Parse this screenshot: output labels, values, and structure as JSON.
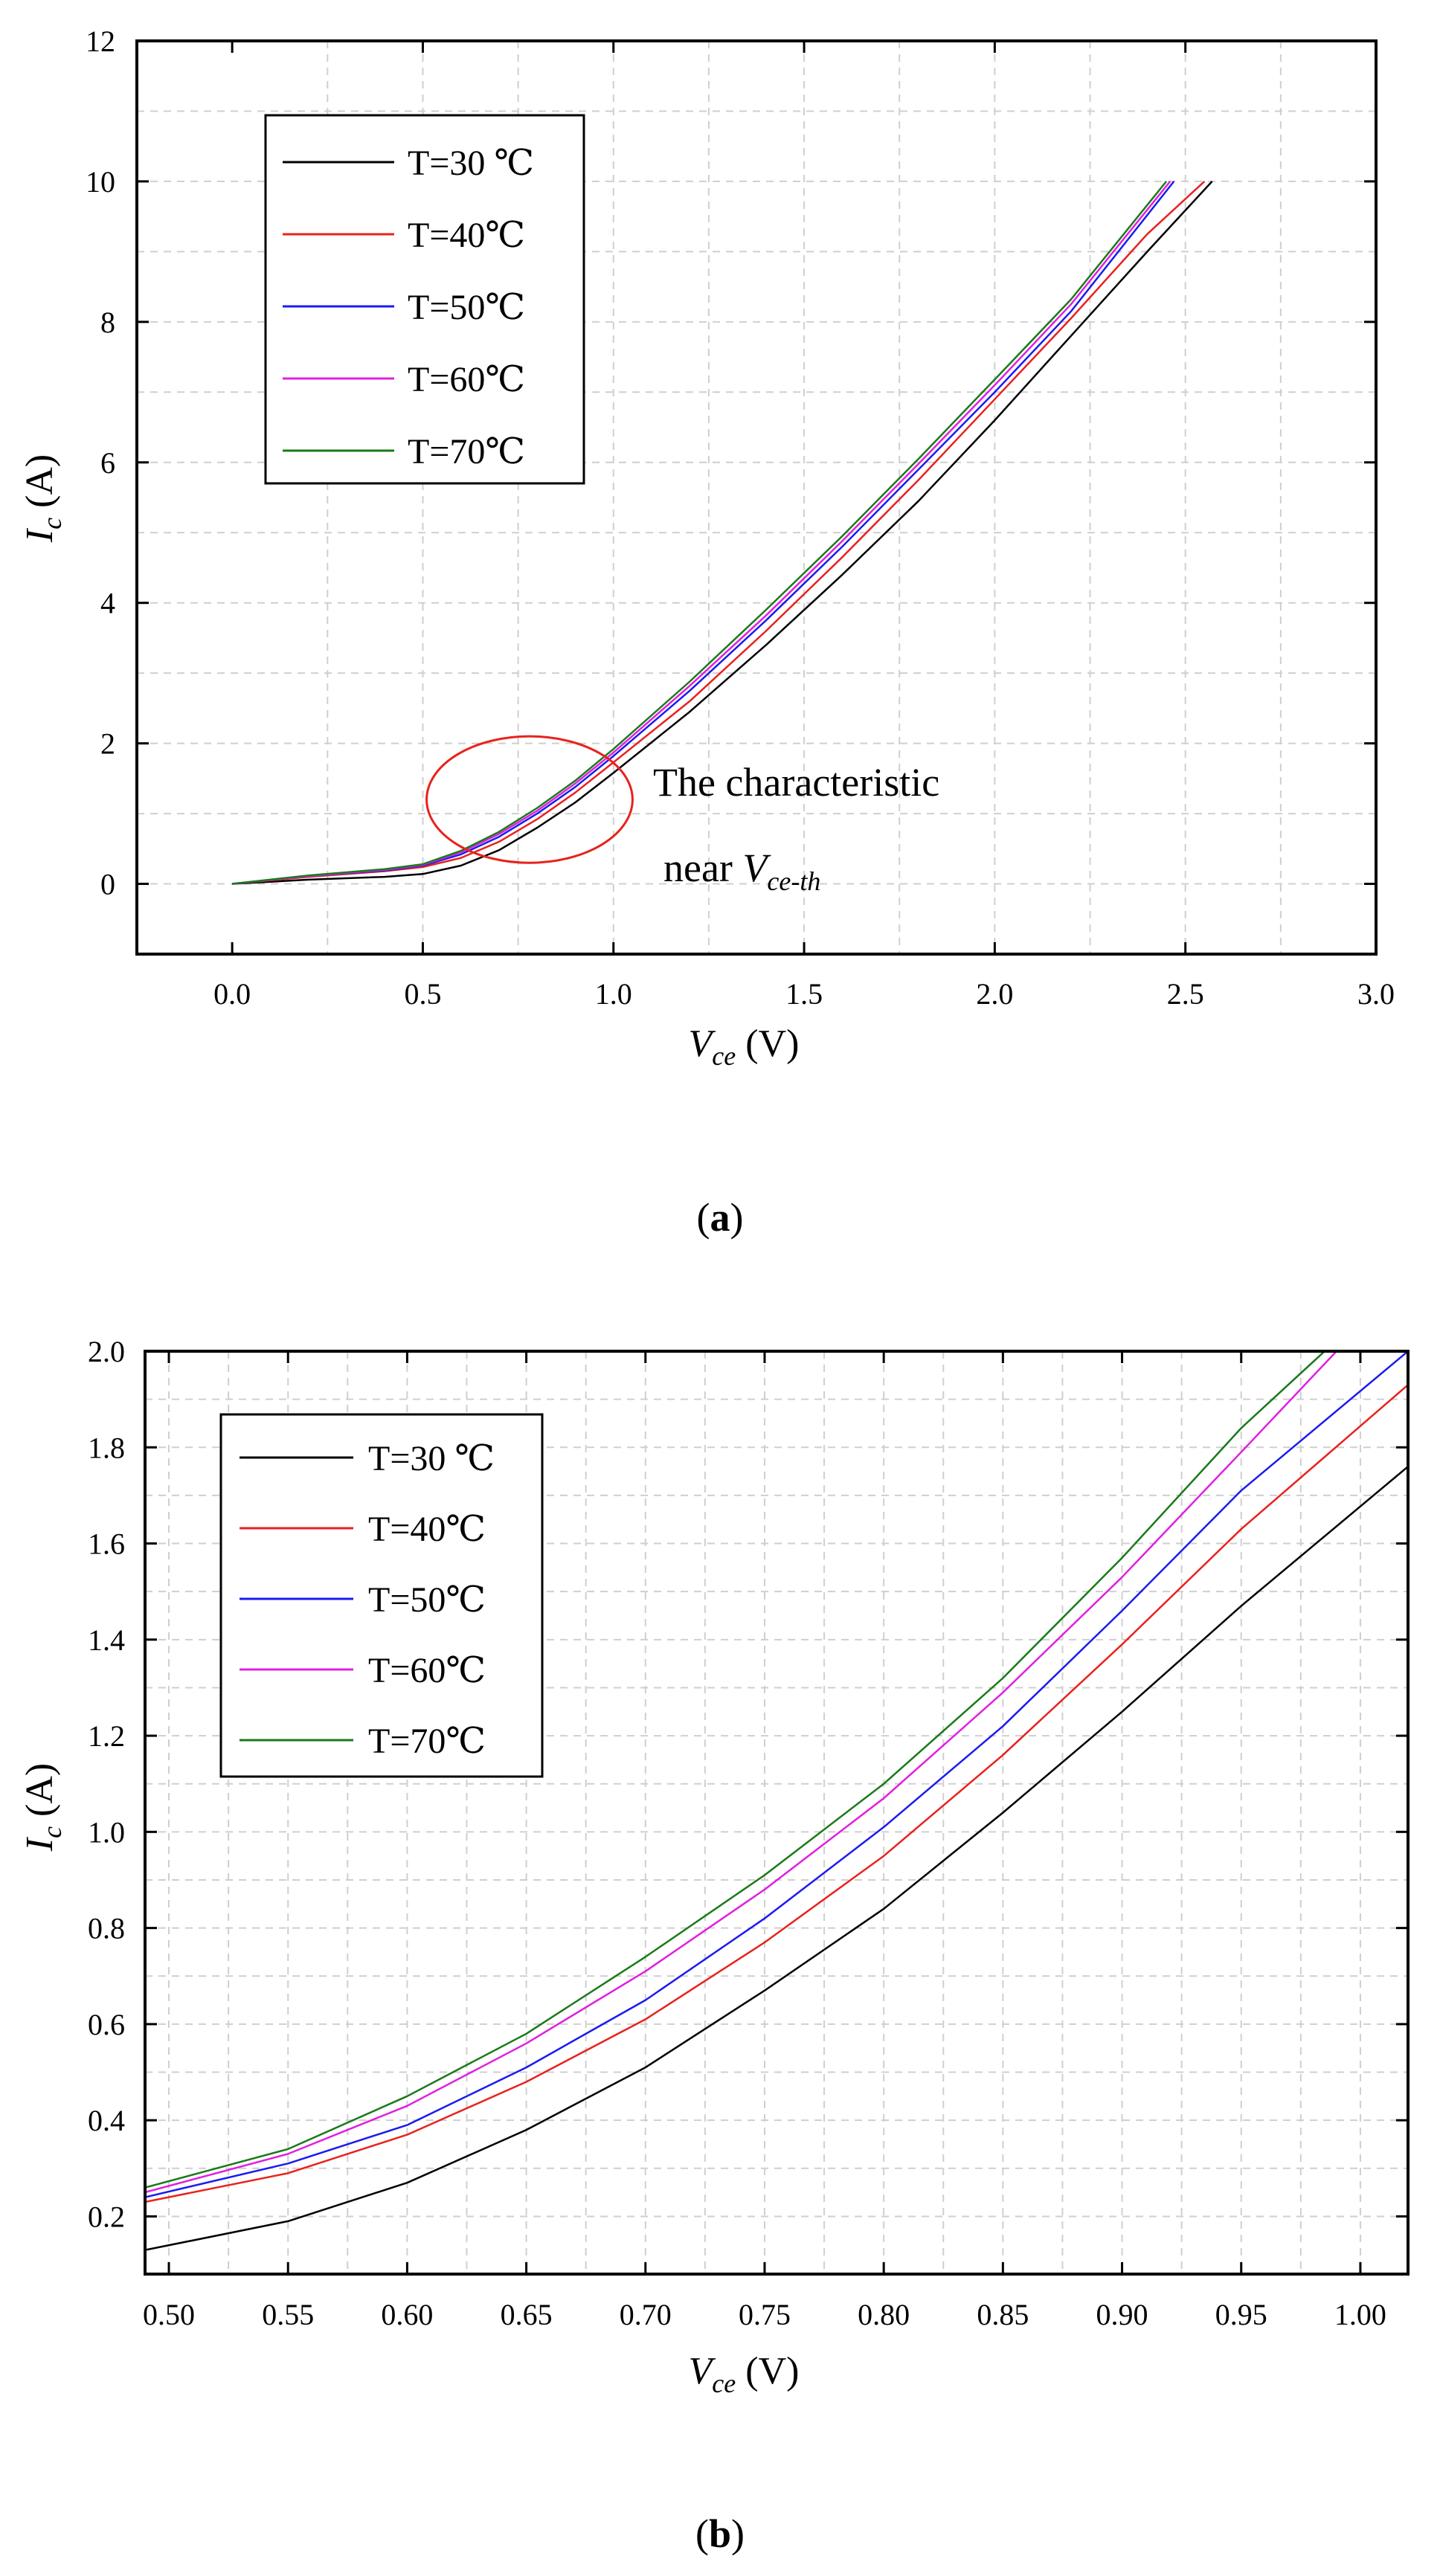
{
  "chart_data": [
    {
      "id": "a",
      "type": "line",
      "caption_letter": "a",
      "xlabel_main": "V",
      "xlabel_sub": "ce",
      "xlabel_unit": "(V)",
      "ylabel_main": "I",
      "ylabel_sub": "c",
      "ylabel_unit": "(A)",
      "xlim": [
        -0.25,
        3.0
      ],
      "ylim": [
        -1,
        12
      ],
      "xticks": [
        0.0,
        0.5,
        1.0,
        1.5,
        2.0,
        2.5,
        3.0
      ],
      "xtick_labels": [
        "0.0",
        "0.5",
        "1.0",
        "1.5",
        "2.0",
        "2.5",
        "3.0"
      ],
      "yticks": [
        0,
        2,
        4,
        6,
        8,
        10,
        12
      ],
      "ytick_labels": [
        "0",
        "2",
        "4",
        "6",
        "8",
        "10",
        "12"
      ],
      "xgrid": [
        0.25,
        0.5,
        0.75,
        1.0,
        1.25,
        1.5,
        1.75,
        2.0,
        2.25,
        2.5,
        2.75
      ],
      "ygrid": [
        0,
        1,
        2,
        3,
        4,
        5,
        6,
        7,
        8,
        9,
        10,
        11
      ],
      "grid": true,
      "legend_position": "top-left",
      "series": [
        {
          "name": "T=30 ℃",
          "color": "#000000",
          "x": [
            0.0,
            0.2,
            0.4,
            0.5,
            0.6,
            0.7,
            0.8,
            0.9,
            1.0,
            1.2,
            1.4,
            1.6,
            1.8,
            2.0,
            2.2,
            2.4,
            2.57
          ],
          "y": [
            0.0,
            0.06,
            0.1,
            0.14,
            0.26,
            0.48,
            0.8,
            1.16,
            1.58,
            2.45,
            3.4,
            4.4,
            5.45,
            6.6,
            7.8,
            9.0,
            10.0
          ]
        },
        {
          "name": "T=40℃",
          "color": "#e8221e",
          "x": [
            0.0,
            0.2,
            0.4,
            0.5,
            0.6,
            0.7,
            0.8,
            0.9,
            1.0,
            1.2,
            1.4,
            1.6,
            1.8,
            2.0,
            2.2,
            2.4,
            2.55
          ],
          "y": [
            0.0,
            0.1,
            0.18,
            0.24,
            0.37,
            0.6,
            0.92,
            1.3,
            1.73,
            2.6,
            3.6,
            4.65,
            5.75,
            6.9,
            8.05,
            9.25,
            10.0
          ]
        },
        {
          "name": "T=50℃",
          "color": "#1b1bf0",
          "x": [
            0.0,
            0.2,
            0.4,
            0.5,
            0.6,
            0.7,
            0.8,
            0.9,
            1.0,
            1.2,
            1.4,
            1.6,
            1.8,
            2.0,
            2.2,
            2.47
          ],
          "y": [
            0.0,
            0.11,
            0.19,
            0.26,
            0.42,
            0.67,
            1.0,
            1.38,
            1.82,
            2.75,
            3.75,
            4.8,
            5.9,
            7.0,
            8.15,
            10.0
          ]
        },
        {
          "name": "T=60℃",
          "color": "#e020e0",
          "x": [
            0.0,
            0.2,
            0.4,
            0.5,
            0.6,
            0.7,
            0.8,
            0.9,
            1.0,
            1.2,
            1.4,
            1.6,
            1.8,
            2.0,
            2.2,
            2.46
          ],
          "y": [
            0.0,
            0.11,
            0.2,
            0.27,
            0.45,
            0.71,
            1.04,
            1.43,
            1.87,
            2.82,
            3.82,
            4.88,
            5.98,
            7.1,
            8.25,
            10.0
          ]
        },
        {
          "name": "T=70℃",
          "color": "#1a7a1a",
          "x": [
            0.0,
            0.2,
            0.4,
            0.5,
            0.6,
            0.7,
            0.8,
            0.9,
            1.0,
            1.2,
            1.4,
            1.6,
            1.8,
            2.0,
            2.2,
            2.45
          ],
          "y": [
            0.0,
            0.12,
            0.21,
            0.28,
            0.47,
            0.74,
            1.08,
            1.47,
            1.92,
            2.88,
            3.9,
            4.95,
            6.05,
            7.18,
            8.32,
            10.0
          ]
        }
      ],
      "annotation": {
        "line1": "The characteristic",
        "line2_prefix": "near",
        "line2_var": "V",
        "line2_sub": "ce-th",
        "ellipse_center": [
          0.78,
          1.2
        ],
        "ellipse_radius": [
          0.27,
          0.9
        ]
      }
    },
    {
      "id": "b",
      "type": "line",
      "caption_letter": "b",
      "xlabel_main": "V",
      "xlabel_sub": "ce",
      "xlabel_unit": "(V)",
      "ylabel_main": "I",
      "ylabel_sub": "c",
      "ylabel_unit": "(A)",
      "xlim": [
        0.49,
        1.02
      ],
      "ylim": [
        0.08,
        2.0
      ],
      "xticks": [
        0.5,
        0.55,
        0.6,
        0.65,
        0.7,
        0.75,
        0.8,
        0.85,
        0.9,
        0.95,
        1.0
      ],
      "xtick_labels": [
        "0.50",
        "0.55",
        "0.60",
        "0.65",
        "0.70",
        "0.75",
        "0.80",
        "0.85",
        "0.90",
        "0.95",
        "1.00"
      ],
      "yticks": [
        0.2,
        0.4,
        0.6,
        0.8,
        1.0,
        1.2,
        1.4,
        1.6,
        1.8,
        2.0
      ],
      "ytick_labels": [
        "0.2",
        "0.4",
        "0.6",
        "0.8",
        "1.0",
        "1.2",
        "1.4",
        "1.6",
        "1.8",
        "2.0"
      ],
      "xgrid": [
        0.5,
        0.525,
        0.55,
        0.575,
        0.6,
        0.625,
        0.65,
        0.675,
        0.7,
        0.725,
        0.75,
        0.775,
        0.8,
        0.825,
        0.85,
        0.875,
        0.9,
        0.925,
        0.95,
        0.975,
        1.0
      ],
      "ygrid": [
        0.2,
        0.3,
        0.4,
        0.5,
        0.6,
        0.7,
        0.8,
        0.9,
        1.0,
        1.1,
        1.2,
        1.3,
        1.4,
        1.5,
        1.6,
        1.7,
        1.8,
        1.9
      ],
      "grid": true,
      "legend_position": "top-left",
      "series": [
        {
          "name": "T=30 ℃",
          "color": "#000000",
          "x": [
            0.49,
            0.55,
            0.6,
            0.65,
            0.7,
            0.75,
            0.8,
            0.85,
            0.9,
            0.95,
            1.02
          ],
          "y": [
            0.13,
            0.19,
            0.27,
            0.38,
            0.51,
            0.67,
            0.84,
            1.04,
            1.25,
            1.47,
            1.76
          ]
        },
        {
          "name": "T=40℃",
          "color": "#e8221e",
          "x": [
            0.49,
            0.55,
            0.6,
            0.65,
            0.7,
            0.75,
            0.8,
            0.85,
            0.9,
            0.95,
            1.02
          ],
          "y": [
            0.23,
            0.29,
            0.37,
            0.48,
            0.61,
            0.77,
            0.95,
            1.16,
            1.39,
            1.63,
            1.93
          ]
        },
        {
          "name": "T=50℃",
          "color": "#1b1bf0",
          "x": [
            0.49,
            0.55,
            0.6,
            0.65,
            0.7,
            0.75,
            0.8,
            0.85,
            0.9,
            0.95,
            1.02
          ],
          "y": [
            0.24,
            0.31,
            0.39,
            0.51,
            0.65,
            0.82,
            1.01,
            1.22,
            1.46,
            1.71,
            2.0
          ]
        },
        {
          "name": "T=60℃",
          "color": "#e020e0",
          "x": [
            0.49,
            0.55,
            0.6,
            0.65,
            0.7,
            0.75,
            0.8,
            0.85,
            0.9,
            0.95,
            0.99
          ],
          "y": [
            0.25,
            0.33,
            0.43,
            0.56,
            0.71,
            0.88,
            1.07,
            1.29,
            1.53,
            1.79,
            2.0
          ]
        },
        {
          "name": "T=70℃",
          "color": "#1a7a1a",
          "x": [
            0.49,
            0.55,
            0.6,
            0.65,
            0.7,
            0.75,
            0.8,
            0.85,
            0.9,
            0.95,
            0.985
          ],
          "y": [
            0.26,
            0.34,
            0.45,
            0.58,
            0.74,
            0.91,
            1.1,
            1.32,
            1.57,
            1.84,
            2.0
          ]
        }
      ]
    }
  ]
}
